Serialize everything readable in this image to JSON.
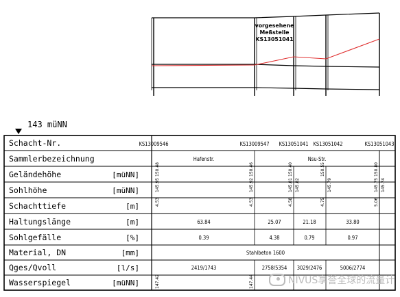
{
  "profile": {
    "reference_level": "143 müNN",
    "annotation": [
      "vorgesehene",
      "Meßstelle",
      "KS13051041"
    ]
  },
  "table": {
    "rows": [
      {
        "label": "Schacht-Nr.",
        "unit": ""
      },
      {
        "label": "Sammlerbezeichnung",
        "unit": ""
      },
      {
        "label": "Geländehöhe",
        "unit": "[müNN]"
      },
      {
        "label": "Sohlhöhe",
        "unit": "[müNN]"
      },
      {
        "label": "Schachttiefe",
        "unit": "[m]"
      },
      {
        "label": "Haltungslänge",
        "unit": "[m]"
      },
      {
        "label": "Sohlgefälle",
        "unit": "[%]"
      },
      {
        "label": "Material, DN",
        "unit": "[mm]"
      },
      {
        "label": "Qges/Qvoll",
        "unit": "[l/s]"
      },
      {
        "label": "Wasserspiegel",
        "unit": "[müNN]"
      }
    ],
    "manholes": [
      "KS13009546",
      "KS13009547",
      "KS13051041",
      "KS13051042",
      "KS13051043"
    ],
    "sammler": [
      "Hafenstr.",
      "Nsu-Str."
    ],
    "gelaendehoehe": [
      "150.48",
      "150.46",
      "150.40",
      "150.55",
      "150.80"
    ],
    "sohlhoehe": [
      "145.95",
      "145.92",
      "145.81",
      "145.82",
      "145.79",
      "145.75",
      "145.74"
    ],
    "schachttiefe": [
      "4.53",
      "4.53",
      "4.58",
      "4.75",
      "5.06"
    ],
    "haltungslaenge": [
      "63.84",
      "25.07",
      "21.18",
      "33.80"
    ],
    "sohlgefaelle": [
      "0.39",
      "4.38",
      "0.79",
      "0.97"
    ],
    "material": "Stahlbeton 1600",
    "qges_qvoll": [
      "2419/1743",
      "2758/5354",
      "3029/2476",
      "5006/2774"
    ],
    "wasserspiegel": [
      "147.42",
      "147.44"
    ]
  },
  "watermark": "NIVUS享誉全球的流量计"
}
